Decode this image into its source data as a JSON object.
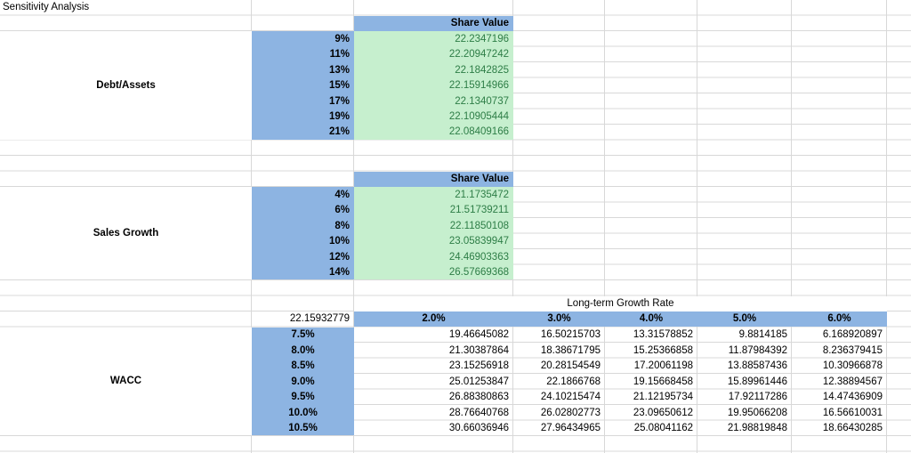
{
  "title": "Sensitivity Analysis",
  "colors": {
    "header_fill_blue": "#8DB4E2",
    "good_cell_fill_green": "#C6EFCE",
    "good_cell_text_green": "#2D7D46",
    "gridline": "#D8D8D8"
  },
  "tables": {
    "debt_assets": {
      "label": "Debt/Assets",
      "header": "Share Value",
      "rows": [
        {
          "pct": "9%",
          "value": "22.2347196"
        },
        {
          "pct": "11%",
          "value": "22.20947242"
        },
        {
          "pct": "13%",
          "value": "22.1842825"
        },
        {
          "pct": "15%",
          "value": "22.15914966"
        },
        {
          "pct": "17%",
          "value": "22.1340737"
        },
        {
          "pct": "19%",
          "value": "22.10905444"
        },
        {
          "pct": "21%",
          "value": "22.08409166"
        }
      ]
    },
    "sales_growth": {
      "label": "Sales Growth",
      "header": "Share Value",
      "rows": [
        {
          "pct": "4%",
          "value": "21.1735472"
        },
        {
          "pct": "6%",
          "value": "21.51739211"
        },
        {
          "pct": "8%",
          "value": "22.11850108"
        },
        {
          "pct": "10%",
          "value": "23.05839947"
        },
        {
          "pct": "12%",
          "value": "24.46903363"
        },
        {
          "pct": "14%",
          "value": "26.57669368"
        }
      ]
    },
    "wacc": {
      "label": "WACC",
      "col_group_header": "Long-term Growth Rate",
      "corner_value": "22.15932779",
      "col_headers": [
        "2.0%",
        "3.0%",
        "4.0%",
        "5.0%",
        "6.0%"
      ],
      "rows": [
        {
          "pct": "7.5%",
          "values": [
            "19.46645082",
            "16.50215703",
            "13.31578852",
            "9.8814185",
            "6.168920897"
          ]
        },
        {
          "pct": "8.0%",
          "values": [
            "21.30387864",
            "18.38671795",
            "15.25366858",
            "11.87984392",
            "8.236379415"
          ]
        },
        {
          "pct": "8.5%",
          "values": [
            "23.15256918",
            "20.28154549",
            "17.20061198",
            "13.88587436",
            "10.30966878"
          ]
        },
        {
          "pct": "9.0%",
          "values": [
            "25.01253847",
            "22.1866768",
            "19.15668458",
            "15.89961446",
            "12.38894567"
          ]
        },
        {
          "pct": "9.5%",
          "values": [
            "26.88380863",
            "24.10215474",
            "21.12195734",
            "17.92117286",
            "14.47436909"
          ]
        },
        {
          "pct": "10.0%",
          "values": [
            "28.76640768",
            "26.02802773",
            "23.09650612",
            "19.95066208",
            "16.56610031"
          ]
        },
        {
          "pct": "10.5%",
          "values": [
            "30.66036946",
            "27.96434965",
            "25.08041162",
            "21.98819848",
            "18.66430285"
          ]
        }
      ]
    }
  }
}
